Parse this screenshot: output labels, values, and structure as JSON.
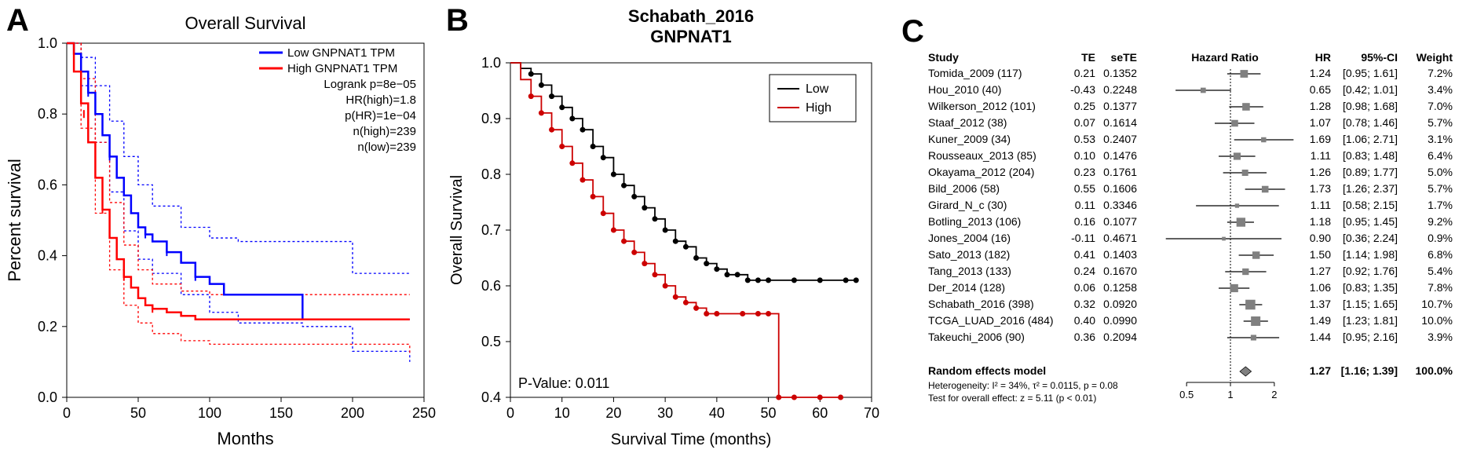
{
  "panelA": {
    "label": "A",
    "title": "Overall Survival",
    "xlabel": "Months",
    "ylabel": "Percent survival",
    "xlim": [
      0,
      250
    ],
    "xticks": [
      0,
      50,
      100,
      150,
      200,
      250
    ],
    "ylim": [
      0,
      1.0
    ],
    "yticks": [
      0.0,
      0.2,
      0.4,
      0.6,
      0.8,
      1.0
    ],
    "legend": {
      "low": {
        "label": "Low GNPNAT1 TPM",
        "color": "#0000ff"
      },
      "high": {
        "label": "High GNPNAT1 TPM",
        "color": "#ff0000"
      }
    },
    "annotations": [
      "Logrank p=8e−05",
      "HR(high)=1.8",
      "p(HR)=1e−04",
      "n(high)=239",
      "n(low)=239"
    ],
    "low_curve_color": "#0000ff",
    "high_curve_color": "#ff0000",
    "ci_dash": "3,3",
    "line_width": 2.5,
    "low_curve": [
      [
        0,
        1.0
      ],
      [
        5,
        0.97
      ],
      [
        10,
        0.92
      ],
      [
        15,
        0.86
      ],
      [
        20,
        0.8
      ],
      [
        25,
        0.74
      ],
      [
        30,
        0.68
      ],
      [
        35,
        0.62
      ],
      [
        40,
        0.57
      ],
      [
        45,
        0.52
      ],
      [
        50,
        0.48
      ],
      [
        55,
        0.46
      ],
      [
        60,
        0.44
      ],
      [
        70,
        0.41
      ],
      [
        80,
        0.38
      ],
      [
        90,
        0.34
      ],
      [
        100,
        0.32
      ],
      [
        110,
        0.29
      ],
      [
        120,
        0.29
      ],
      [
        150,
        0.29
      ],
      [
        165,
        0.22
      ],
      [
        200,
        0.22
      ],
      [
        240,
        0.22
      ]
    ],
    "low_ci_upper": [
      [
        0,
        1.0
      ],
      [
        10,
        0.96
      ],
      [
        20,
        0.88
      ],
      [
        30,
        0.78
      ],
      [
        40,
        0.68
      ],
      [
        50,
        0.6
      ],
      [
        60,
        0.54
      ],
      [
        80,
        0.48
      ],
      [
        100,
        0.45
      ],
      [
        120,
        0.44
      ],
      [
        165,
        0.44
      ],
      [
        200,
        0.35
      ],
      [
        240,
        0.35
      ]
    ],
    "low_ci_lower": [
      [
        0,
        1.0
      ],
      [
        10,
        0.88
      ],
      [
        20,
        0.72
      ],
      [
        30,
        0.58
      ],
      [
        40,
        0.47
      ],
      [
        50,
        0.39
      ],
      [
        60,
        0.35
      ],
      [
        80,
        0.29
      ],
      [
        100,
        0.24
      ],
      [
        120,
        0.21
      ],
      [
        165,
        0.2
      ],
      [
        200,
        0.13
      ],
      [
        240,
        0.1
      ]
    ],
    "high_curve": [
      [
        0,
        1.0
      ],
      [
        5,
        0.92
      ],
      [
        10,
        0.83
      ],
      [
        15,
        0.72
      ],
      [
        20,
        0.62
      ],
      [
        25,
        0.53
      ],
      [
        30,
        0.45
      ],
      [
        35,
        0.39
      ],
      [
        40,
        0.34
      ],
      [
        45,
        0.31
      ],
      [
        50,
        0.28
      ],
      [
        55,
        0.26
      ],
      [
        60,
        0.25
      ],
      [
        70,
        0.24
      ],
      [
        80,
        0.23
      ],
      [
        90,
        0.22
      ],
      [
        100,
        0.22
      ],
      [
        120,
        0.22
      ],
      [
        165,
        0.22
      ],
      [
        200,
        0.22
      ],
      [
        240,
        0.22
      ]
    ],
    "high_ci_upper": [
      [
        0,
        1.0
      ],
      [
        10,
        0.9
      ],
      [
        20,
        0.72
      ],
      [
        30,
        0.55
      ],
      [
        40,
        0.43
      ],
      [
        50,
        0.36
      ],
      [
        60,
        0.32
      ],
      [
        80,
        0.3
      ],
      [
        100,
        0.29
      ],
      [
        165,
        0.29
      ],
      [
        200,
        0.29
      ],
      [
        240,
        0.29
      ]
    ],
    "high_ci_lower": [
      [
        0,
        1.0
      ],
      [
        10,
        0.76
      ],
      [
        20,
        0.52
      ],
      [
        30,
        0.36
      ],
      [
        40,
        0.26
      ],
      [
        50,
        0.21
      ],
      [
        60,
        0.18
      ],
      [
        80,
        0.16
      ],
      [
        100,
        0.15
      ],
      [
        165,
        0.15
      ],
      [
        200,
        0.15
      ],
      [
        240,
        0.12
      ]
    ]
  },
  "panelB": {
    "label": "B",
    "title1": "Schabath_2016",
    "title2": "GNPNAT1",
    "xlabel": "Survival Time (months)",
    "ylabel": "Overall Survival",
    "xlim": [
      0,
      70
    ],
    "xticks": [
      0,
      10,
      20,
      30,
      40,
      50,
      60,
      70
    ],
    "ylim": [
      0.4,
      1.0
    ],
    "yticks": [
      0.4,
      0.5,
      0.6,
      0.7,
      0.8,
      0.9,
      1.0
    ],
    "legend": {
      "low": {
        "label": "Low",
        "color": "#000000"
      },
      "high": {
        "label": "High",
        "color": "#cc0000"
      }
    },
    "pvalue_label": "P-Value: 0.011",
    "marker_radius": 3.5,
    "line_width": 1.8,
    "low_curve": [
      [
        0,
        1.0
      ],
      [
        2,
        0.99
      ],
      [
        4,
        0.98
      ],
      [
        6,
        0.96
      ],
      [
        8,
        0.94
      ],
      [
        10,
        0.92
      ],
      [
        12,
        0.9
      ],
      [
        14,
        0.88
      ],
      [
        16,
        0.85
      ],
      [
        18,
        0.83
      ],
      [
        20,
        0.8
      ],
      [
        22,
        0.78
      ],
      [
        24,
        0.76
      ],
      [
        26,
        0.74
      ],
      [
        28,
        0.72
      ],
      [
        30,
        0.7
      ],
      [
        32,
        0.68
      ],
      [
        34,
        0.67
      ],
      [
        36,
        0.65
      ],
      [
        38,
        0.64
      ],
      [
        40,
        0.63
      ],
      [
        42,
        0.62
      ],
      [
        44,
        0.62
      ],
      [
        46,
        0.61
      ],
      [
        48,
        0.61
      ],
      [
        50,
        0.61
      ],
      [
        55,
        0.61
      ],
      [
        60,
        0.61
      ],
      [
        65,
        0.61
      ],
      [
        67,
        0.61
      ]
    ],
    "high_curve": [
      [
        0,
        1.0
      ],
      [
        2,
        0.97
      ],
      [
        4,
        0.94
      ],
      [
        6,
        0.91
      ],
      [
        8,
        0.88
      ],
      [
        10,
        0.85
      ],
      [
        12,
        0.82
      ],
      [
        14,
        0.79
      ],
      [
        16,
        0.76
      ],
      [
        18,
        0.73
      ],
      [
        20,
        0.7
      ],
      [
        22,
        0.68
      ],
      [
        24,
        0.66
      ],
      [
        26,
        0.64
      ],
      [
        28,
        0.62
      ],
      [
        30,
        0.6
      ],
      [
        32,
        0.58
      ],
      [
        34,
        0.57
      ],
      [
        36,
        0.56
      ],
      [
        38,
        0.55
      ],
      [
        40,
        0.55
      ],
      [
        45,
        0.55
      ],
      [
        48,
        0.55
      ],
      [
        50,
        0.55
      ],
      [
        52,
        0.4
      ],
      [
        55,
        0.4
      ],
      [
        60,
        0.4
      ],
      [
        64,
        0.4
      ]
    ]
  },
  "panelC": {
    "label": "C",
    "headers": {
      "study": "Study",
      "te": "TE",
      "sete": "seTE",
      "hrHeader": "Hazard Ratio",
      "hr": "HR",
      "ci": "95%-CI",
      "weight": "Weight"
    },
    "x_axis_ticks": [
      0.5,
      1,
      2
    ],
    "x_axis_log": true,
    "marker_fill": "#808080",
    "ci_line_color": "#000000",
    "null_line_color": "#000000",
    "null_line_dash": "2,2",
    "font_size": 14,
    "rows": [
      {
        "study": "Tomida_2009 (117)",
        "te": "0.21",
        "sete": "0.1352",
        "hr": "1.24",
        "lo": 0.95,
        "hi": 1.61,
        "wt": "7.2%",
        "sq": 7.2
      },
      {
        "study": "Hou_2010 (40)",
        "te": "-0.43",
        "sete": "0.2248",
        "hr": "0.65",
        "lo": 0.42,
        "hi": 1.01,
        "wt": "3.4%",
        "sq": 3.4
      },
      {
        "study": "Wilkerson_2012 (101)",
        "te": "0.25",
        "sete": "0.1377",
        "hr": "1.28",
        "lo": 0.98,
        "hi": 1.68,
        "wt": "7.0%",
        "sq": 7.0
      },
      {
        "study": "Staaf_2012 (38)",
        "te": "0.07",
        "sete": "0.1614",
        "hr": "1.07",
        "lo": 0.78,
        "hi": 1.46,
        "wt": "5.7%",
        "sq": 5.7
      },
      {
        "study": "Kuner_2009 (34)",
        "te": "0.53",
        "sete": "0.2407",
        "hr": "1.69",
        "lo": 1.06,
        "hi": 2.71,
        "wt": "3.1%",
        "sq": 3.1
      },
      {
        "study": "Rousseaux_2013 (85)",
        "te": "0.10",
        "sete": "0.1476",
        "hr": "1.11",
        "lo": 0.83,
        "hi": 1.48,
        "wt": "6.4%",
        "sq": 6.4
      },
      {
        "study": "Okayama_2012 (204)",
        "te": "0.23",
        "sete": "0.1761",
        "hr": "1.26",
        "lo": 0.89,
        "hi": 1.77,
        "wt": "5.0%",
        "sq": 5.0
      },
      {
        "study": "Bild_2006 (58)",
        "te": "0.55",
        "sete": "0.1606",
        "hr": "1.73",
        "lo": 1.26,
        "hi": 2.37,
        "wt": "5.7%",
        "sq": 5.7
      },
      {
        "study": "Girard_N_c (30)",
        "te": "0.11",
        "sete": "0.3346",
        "hr": "1.11",
        "lo": 0.58,
        "hi": 2.15,
        "wt": "1.7%",
        "sq": 1.7
      },
      {
        "study": "Botling_2013 (106)",
        "te": "0.16",
        "sete": "0.1077",
        "hr": "1.18",
        "lo": 0.95,
        "hi": 1.45,
        "wt": "9.2%",
        "sq": 9.2
      },
      {
        "study": "Jones_2004 (16)",
        "te": "-0.11",
        "sete": "0.4671",
        "hr": "0.90",
        "lo": 0.36,
        "hi": 2.24,
        "wt": "0.9%",
        "sq": 0.9
      },
      {
        "study": "Sato_2013 (182)",
        "te": "0.41",
        "sete": "0.1403",
        "hr": "1.50",
        "lo": 1.14,
        "hi": 1.98,
        "wt": "6.8%",
        "sq": 6.8
      },
      {
        "study": "Tang_2013 (133)",
        "te": "0.24",
        "sete": "0.1670",
        "hr": "1.27",
        "lo": 0.92,
        "hi": 1.76,
        "wt": "5.4%",
        "sq": 5.4
      },
      {
        "study": "Der_2014 (128)",
        "te": "0.06",
        "sete": "0.1258",
        "hr": "1.06",
        "lo": 0.83,
        "hi": 1.35,
        "wt": "7.8%",
        "sq": 7.8
      },
      {
        "study": "Schabath_2016 (398)",
        "te": "0.32",
        "sete": "0.0920",
        "hr": "1.37",
        "lo": 1.15,
        "hi": 1.65,
        "wt": "10.7%",
        "sq": 10.7
      },
      {
        "study": "TCGA_LUAD_2016 (484)",
        "te": "0.40",
        "sete": "0.0990",
        "hr": "1.49",
        "lo": 1.23,
        "hi": 1.81,
        "wt": "10.0%",
        "sq": 10.0
      },
      {
        "study": "Takeuchi_2006 (90)",
        "te": "0.36",
        "sete": "0.2094",
        "hr": "1.44",
        "lo": 0.95,
        "hi": 2.16,
        "wt": "3.9%",
        "sq": 3.9
      }
    ],
    "summary": {
      "label": "Random effects model",
      "hr": "1.27",
      "lo": 1.16,
      "hi": 1.39,
      "wt": "100.0%"
    },
    "heterogeneity": "Heterogeneity: I² = 34%, τ² = 0.0115, p = 0.08",
    "overall_effect": "Test for overall effect: z = 5.11 (p < 0.01)"
  }
}
